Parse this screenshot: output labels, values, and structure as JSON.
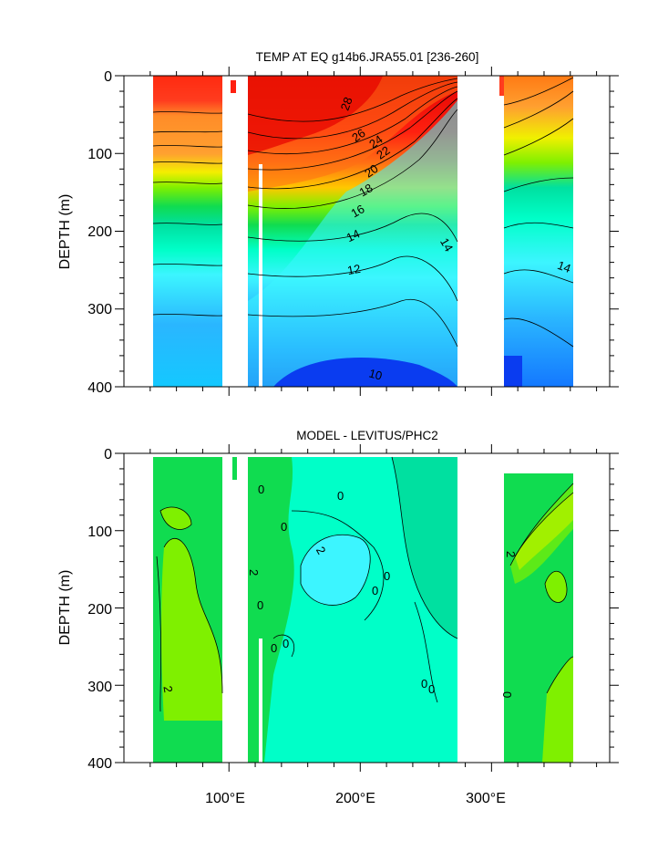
{
  "chart_data": [
    {
      "type": "heatmap",
      "title": "TEMP AT EQ g14b6.JRA55.01 [236-260]",
      "ylabel": "DEPTH (m)",
      "xlim": [
        20,
        390
      ],
      "ylim": [
        400,
        0
      ],
      "y_reversed": true,
      "y_ticks": [
        "0",
        "100",
        "200",
        "300",
        "400"
      ],
      "contour_labels": [
        {
          "text": "28",
          "lon": 195,
          "depth": 35
        },
        {
          "text": "26",
          "lon": 185,
          "depth": 77
        },
        {
          "text": "24",
          "lon": 200,
          "depth": 80
        },
        {
          "text": "22",
          "lon": 207,
          "depth": 95
        },
        {
          "text": "20",
          "lon": 192,
          "depth": 117
        },
        {
          "text": "18",
          "lon": 180,
          "depth": 146
        },
        {
          "text": "16",
          "lon": 166,
          "depth": 181
        },
        {
          "text": "14",
          "lon": 138,
          "depth": 222
        },
        {
          "text": "14",
          "lon": 264,
          "depth": 225
        },
        {
          "text": "14",
          "lon": 346,
          "depth": 247
        },
        {
          "text": "12",
          "lon": 120,
          "depth": 292
        },
        {
          "text": "10",
          "lon": 116,
          "depth": 385
        }
      ],
      "colors": [
        "#0a3cf0",
        "#1478ff",
        "#2ab6ff",
        "#3cf5ff",
        "#00ffc8",
        "#00e0a0",
        "#10dc50",
        "#7ff000",
        "#f0f000",
        "#ffc800",
        "#ff9a28",
        "#ff7014",
        "#ff3c1e",
        "#e60000"
      ]
    },
    {
      "type": "heatmap",
      "title": "MODEL - LEVITUS/PHC2",
      "ylabel": "DEPTH (m)",
      "xlabel": "",
      "x_ticks": [
        "100°E",
        "200°E",
        "300°E"
      ],
      "xlim": [
        20,
        390
      ],
      "ylim": [
        400,
        0
      ],
      "y_reversed": true,
      "y_ticks": [
        "0",
        "100",
        "200",
        "300",
        "400"
      ],
      "contour_labels": [
        {
          "text": "0",
          "lon": 120,
          "depth": 45
        },
        {
          "text": "0",
          "lon": 185,
          "depth": 56
        },
        {
          "text": "0",
          "lon": 168,
          "depth": 100
        },
        {
          "text": "2",
          "lon": 182,
          "depth": 127
        },
        {
          "text": "0",
          "lon": 213,
          "depth": 158
        },
        {
          "text": "0",
          "lon": 220,
          "depth": 178
        },
        {
          "text": "2",
          "lon": 93,
          "depth": 155
        },
        {
          "text": "0",
          "lon": 101,
          "depth": 200
        },
        {
          "text": "0",
          "lon": 128,
          "depth": 240
        },
        {
          "text": "0",
          "lon": 137,
          "depth": 255
        },
        {
          "text": "0",
          "lon": 260,
          "depth": 302
        },
        {
          "text": "0",
          "lon": 262,
          "depth": 310
        },
        {
          "text": "2",
          "lon": 30,
          "depth": 312
        },
        {
          "text": "2",
          "lon": 327,
          "depth": 133
        },
        {
          "text": "0",
          "lon": 316,
          "depth": 312
        }
      ],
      "colors": [
        "#00e0a0",
        "#00ffc8",
        "#3cf5ff",
        "#10dc50",
        "#7ff000",
        "#f0f000"
      ]
    }
  ]
}
